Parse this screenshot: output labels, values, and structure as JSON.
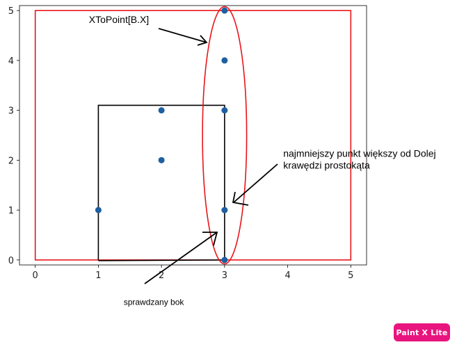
{
  "chart_data": {
    "type": "scatter",
    "xlim": [
      -0.25,
      5.25
    ],
    "ylim": [
      -0.1,
      5.1
    ],
    "xticks": [
      0,
      1,
      2,
      3,
      4,
      5
    ],
    "yticks": [
      0,
      1,
      2,
      3,
      4,
      5
    ],
    "grid": false,
    "points": [
      {
        "x": 1,
        "y": 1
      },
      {
        "x": 2,
        "y": 2
      },
      {
        "x": 2,
        "y": 3
      },
      {
        "x": 3,
        "y": 0
      },
      {
        "x": 3,
        "y": 1
      },
      {
        "x": 3,
        "y": 3
      },
      {
        "x": 3,
        "y": 4
      },
      {
        "x": 3,
        "y": 5
      }
    ],
    "point_color": "#1f5fa0",
    "outer_rectangle": {
      "x0": 0,
      "y0": 0,
      "x1": 5,
      "y1": 5,
      "color": "#e8141a"
    },
    "inner_rectangle": {
      "x0": 1,
      "y0": 0,
      "x1": 3,
      "y1": 3.1,
      "color": "#000000"
    },
    "ellipse": {
      "cx": 3,
      "cy": 2.5,
      "rx": 0.35,
      "ry": 2.58,
      "color": "#e8141a"
    },
    "annotations": [
      {
        "text": "XToPoint[B.X]",
        "x": 0.85,
        "y": 4.75
      },
      {
        "text": "najmniejszy punkt większy od Dolej",
        "x": 3.93,
        "y": 2.07
      },
      {
        "text": "krawędzi prostokąta",
        "x": 3.93,
        "y": 1.83
      },
      {
        "text": "sprawdzany bok",
        "x": 1.4,
        "y": -0.9
      }
    ]
  },
  "watermark": {
    "text": "Paint X Lite",
    "color": "#e8157f"
  }
}
